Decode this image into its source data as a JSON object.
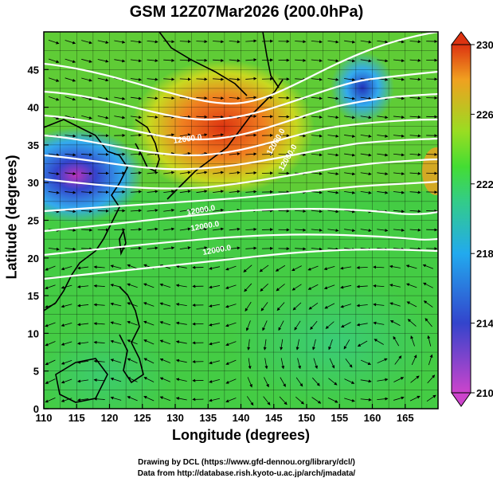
{
  "title": "GSM 12Z07Mar2026 (200.0hPa)",
  "colors": {
    "scale": [
      "#cc44cc",
      "#3344cc",
      "#22aaee",
      "#33cc88",
      "#44dd33",
      "#99dd22",
      "#f0a020",
      "#dd3311"
    ]
  },
  "credits": {
    "line1": "Drawing by DCL (https://www.gfd-dennou.org/library/dcl/)",
    "line2": "Data from http://database.rish.kyoto-u.ac.jp/arch/jmadata/"
  },
  "chart_data": {
    "type": "heatmap",
    "title": "GSM 12Z07Mar2026 (200.0hPa)",
    "xlabel": "Longitude (degrees)",
    "ylabel": "Latitude  (degrees)",
    "xlim": [
      110,
      170
    ],
    "ylim": [
      0,
      50
    ],
    "xticks": [
      "110",
      "115",
      "120",
      "125",
      "130",
      "135",
      "140",
      "145",
      "150",
      "155",
      "160",
      "165"
    ],
    "yticks": [
      "0",
      "5",
      "10",
      "15",
      "20",
      "25",
      "30",
      "35",
      "40",
      "45"
    ],
    "colorbar": {
      "min": 210,
      "max": 230,
      "ticks": [
        "210",
        "214",
        "218",
        "222",
        "226",
        "230"
      ]
    },
    "contour_label": "12000.0",
    "features": [
      {
        "kind": "warm-max",
        "lon": 136,
        "lat": 38,
        "value": 228
      },
      {
        "kind": "cold-min",
        "lon": 115,
        "lat": 32,
        "value": 211
      },
      {
        "kind": "cold-min",
        "lon": 157,
        "lat": 43,
        "value": 214
      }
    ]
  }
}
